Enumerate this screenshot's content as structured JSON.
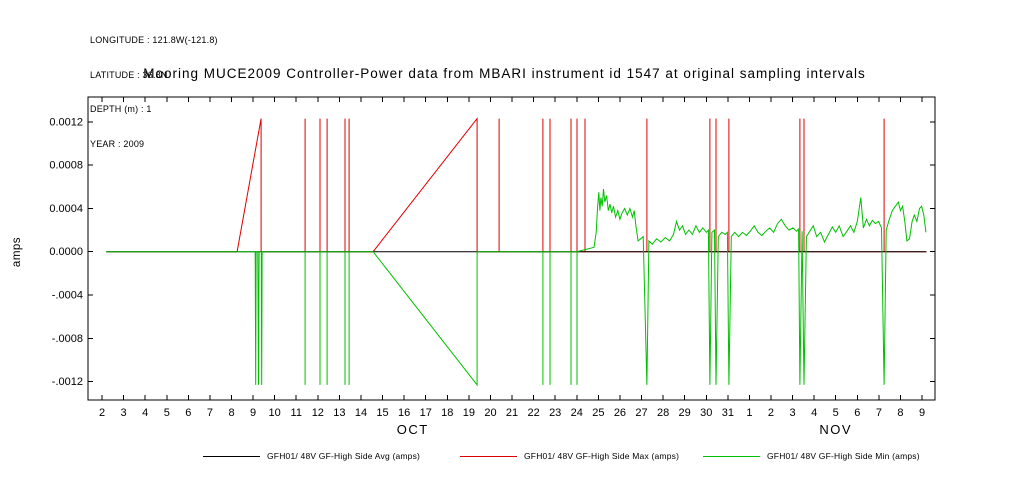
{
  "meta": {
    "lines": [
      "LONGITUDE : 121.8W(-121.8)",
      "LATITUDE : 36.8N",
      "DEPTH (m) : 1",
      "YEAR : 2009"
    ]
  },
  "title": "Mooring MUCE2009 Controller-Power data from MBARI instrument id 1547 at original sampling intervals",
  "chart_data": {
    "type": "line",
    "title": "Mooring MUCE2009 Controller-Power data from MBARI instrument id 1547 at original sampling intervals",
    "ylabel": "amps",
    "xlim": [
      1.35,
      40.6
    ],
    "ylim": [
      -0.00137,
      0.00143
    ],
    "x_tick_start": 2,
    "x_tick_labels": [
      "2",
      "3",
      "4",
      "5",
      "6",
      "7",
      "8",
      "9",
      "10",
      "11",
      "12",
      "13",
      "14",
      "15",
      "16",
      "17",
      "18",
      "19",
      "20",
      "21",
      "22",
      "23",
      "24",
      "25",
      "26",
      "27",
      "28",
      "29",
      "30",
      "31",
      "1",
      "2",
      "3",
      "4",
      "5",
      "6",
      "7",
      "8",
      "9"
    ],
    "x_month_labels": [
      {
        "x": 16.4,
        "label": "OCT"
      },
      {
        "x": 36.0,
        "label": "NOV"
      }
    ],
    "y_ticks": [
      {
        "v": 0.0012,
        "label": "0.0012"
      },
      {
        "v": 0.0008,
        "label": "0.0008"
      },
      {
        "v": 0.0004,
        "label": "0.0004"
      },
      {
        "v": 0.0,
        "label": "0.0000"
      },
      {
        "v": -0.0004,
        "label": "-.0004"
      },
      {
        "v": -0.0008,
        "label": "-.0008"
      },
      {
        "v": -0.0012,
        "label": "-.0012"
      }
    ],
    "draw_order": [
      1,
      0,
      2
    ],
    "series": [
      {
        "id": "avg",
        "name": "GFH01/ 48V GF-High Side Avg (amps)",
        "color": "#000000",
        "points": [
          [
            2.2,
            0
          ],
          [
            40.2,
            0
          ]
        ]
      },
      {
        "id": "max",
        "name": "GFH01/ 48V GF-High Side Max (amps)",
        "color": "#dd0000",
        "points": [
          [
            2.2,
            0
          ],
          [
            8.26,
            0
          ],
          [
            9.37,
            0.00123
          ],
          [
            9.37,
            0
          ],
          [
            11.41,
            0
          ],
          [
            11.41,
            0.00123
          ],
          [
            11.41,
            0
          ],
          [
            12.1,
            0
          ],
          [
            12.1,
            0.00123
          ],
          [
            12.1,
            0
          ],
          [
            12.43,
            0
          ],
          [
            12.43,
            0.00123
          ],
          [
            12.43,
            0
          ],
          [
            13.26,
            0
          ],
          [
            13.26,
            0.00123
          ],
          [
            13.26,
            0
          ],
          [
            13.45,
            0
          ],
          [
            13.45,
            0.00123
          ],
          [
            13.45,
            0
          ],
          [
            14.56,
            0
          ],
          [
            19.38,
            0.00123
          ],
          [
            19.38,
            0
          ],
          [
            20.4,
            0
          ],
          [
            20.4,
            0.00123
          ],
          [
            20.4,
            0
          ],
          [
            22.43,
            0
          ],
          [
            22.43,
            0.00123
          ],
          [
            22.43,
            0
          ],
          [
            22.76,
            0
          ],
          [
            22.76,
            0.00123
          ],
          [
            22.76,
            0
          ],
          [
            23.73,
            0
          ],
          [
            23.73,
            0.00123
          ],
          [
            23.73,
            0
          ],
          [
            24.01,
            0
          ],
          [
            24.01,
            0.00123
          ],
          [
            24.01,
            0
          ],
          [
            24.38,
            0
          ],
          [
            24.38,
            0.00123
          ],
          [
            24.38,
            0
          ],
          [
            27.25,
            0
          ],
          [
            27.25,
            0.00123
          ],
          [
            27.25,
            0
          ],
          [
            30.17,
            0
          ],
          [
            30.17,
            0.00123
          ],
          [
            30.17,
            0
          ],
          [
            30.45,
            0
          ],
          [
            30.45,
            0.00123
          ],
          [
            30.45,
            0
          ],
          [
            31.05,
            0
          ],
          [
            31.05,
            0.00123
          ],
          [
            31.05,
            0
          ],
          [
            34.34,
            0
          ],
          [
            34.34,
            0.00123
          ],
          [
            34.34,
            0
          ],
          [
            34.53,
            0
          ],
          [
            34.53,
            0.00123
          ],
          [
            34.53,
            0
          ],
          [
            38.24,
            0
          ],
          [
            38.24,
            0.00123
          ],
          [
            38.24,
            0
          ],
          [
            40.2,
            0
          ]
        ]
      },
      {
        "id": "min",
        "name": "GFH01/ 48V GF-High Side Min (amps)",
        "color": "#00c000",
        "points": [
          [
            2.2,
            0
          ],
          [
            9.1,
            0
          ],
          [
            9.12,
            -0.00123
          ],
          [
            9.14,
            0
          ],
          [
            9.22,
            0
          ],
          [
            9.25,
            -0.00123
          ],
          [
            9.28,
            0
          ],
          [
            9.38,
            0
          ],
          [
            9.4,
            -0.00123
          ],
          [
            9.42,
            0
          ],
          [
            11.41,
            0
          ],
          [
            11.41,
            -0.00123
          ],
          [
            11.41,
            0
          ],
          [
            12.1,
            0
          ],
          [
            12.1,
            -0.00123
          ],
          [
            12.1,
            0
          ],
          [
            12.43,
            0
          ],
          [
            12.43,
            -0.00123
          ],
          [
            12.43,
            0
          ],
          [
            13.26,
            0
          ],
          [
            13.26,
            -0.00123
          ],
          [
            13.26,
            0
          ],
          [
            13.45,
            0
          ],
          [
            13.45,
            -0.00123
          ],
          [
            13.45,
            0
          ],
          [
            14.56,
            0
          ],
          [
            19.38,
            -0.00123
          ],
          [
            19.38,
            0
          ],
          [
            22.43,
            0
          ],
          [
            22.43,
            -0.00123
          ],
          [
            22.43,
            0
          ],
          [
            22.76,
            0
          ],
          [
            22.76,
            -0.00123
          ],
          [
            22.76,
            0
          ],
          [
            23.73,
            0
          ],
          [
            23.73,
            -0.00123
          ],
          [
            23.73,
            0
          ],
          [
            24.01,
            0
          ],
          [
            24.01,
            -0.00123
          ],
          [
            24.01,
            0
          ],
          [
            24.8,
            4e-05
          ],
          [
            24.9,
            0.00018
          ],
          [
            24.96,
            0.0004
          ],
          [
            25.02,
            0.00055
          ],
          [
            25.07,
            0.00038
          ],
          [
            25.12,
            0.0005
          ],
          [
            25.18,
            0.00042
          ],
          [
            25.24,
            0.00058
          ],
          [
            25.3,
            0.00046
          ],
          [
            25.38,
            0.00052
          ],
          [
            25.46,
            0.00038
          ],
          [
            25.54,
            0.00044
          ],
          [
            25.62,
            0.00036
          ],
          [
            25.7,
            0.00042
          ],
          [
            25.8,
            0.00032
          ],
          [
            25.9,
            0.00038
          ],
          [
            26.0,
            0.0003
          ],
          [
            26.1,
            0.00036
          ],
          [
            26.22,
            0.0004
          ],
          [
            26.34,
            0.00034
          ],
          [
            26.46,
            0.0004
          ],
          [
            26.58,
            0.00032
          ],
          [
            26.66,
            0.00038
          ],
          [
            26.74,
            0.00024
          ],
          [
            26.84,
            0.0001
          ],
          [
            26.96,
            0.00012
          ],
          [
            27.08,
            0.00014
          ],
          [
            27.25,
            -0.00123
          ],
          [
            27.34,
            0.0001
          ],
          [
            27.5,
            7e-05
          ],
          [
            27.7,
            0.00012
          ],
          [
            27.9,
            9e-05
          ],
          [
            28.1,
            0.00013
          ],
          [
            28.3,
            0.0001
          ],
          [
            28.48,
            0.00016
          ],
          [
            28.62,
            0.00028
          ],
          [
            28.76,
            0.0002
          ],
          [
            28.9,
            0.00024
          ],
          [
            29.04,
            0.00016
          ],
          [
            29.2,
            0.0002
          ],
          [
            29.36,
            0.00016
          ],
          [
            29.52,
            0.00024
          ],
          [
            29.68,
            0.00018
          ],
          [
            29.84,
            0.00022
          ],
          [
            30.0,
            0.00018
          ],
          [
            30.1,
            0.0002
          ],
          [
            30.17,
            -0.00123
          ],
          [
            30.26,
            0.00018
          ],
          [
            30.38,
            0.0002
          ],
          [
            30.45,
            -0.00123
          ],
          [
            30.56,
            0.00014
          ],
          [
            30.72,
            0.00018
          ],
          [
            30.88,
            0.00016
          ],
          [
            30.98,
            0.00018
          ],
          [
            31.05,
            -0.00123
          ],
          [
            31.16,
            0.00014
          ],
          [
            31.32,
            0.00018
          ],
          [
            31.5,
            0.00014
          ],
          [
            31.68,
            0.00018
          ],
          [
            31.86,
            0.00015
          ],
          [
            32.04,
            0.00019
          ],
          [
            32.22,
            0.00024
          ],
          [
            32.4,
            0.00018
          ],
          [
            32.58,
            0.00015
          ],
          [
            32.76,
            0.00019
          ],
          [
            32.94,
            0.00022
          ],
          [
            33.12,
            0.00018
          ],
          [
            33.3,
            0.00026
          ],
          [
            33.48,
            0.0003
          ],
          [
            33.66,
            0.00024
          ],
          [
            33.84,
            0.0002
          ],
          [
            34.02,
            0.00022
          ],
          [
            34.18,
            0.00019
          ],
          [
            34.28,
            0.00021
          ],
          [
            34.34,
            -0.00123
          ],
          [
            34.44,
            0.00019
          ],
          [
            34.53,
            -0.00123
          ],
          [
            34.64,
            0.00014
          ],
          [
            34.8,
            0.00019
          ],
          [
            34.96,
            0.00024
          ],
          [
            35.12,
            0.00014
          ],
          [
            35.3,
            0.00018
          ],
          [
            35.48,
            9e-05
          ],
          [
            35.66,
            0.00016
          ],
          [
            35.84,
            0.00023
          ],
          [
            36.0,
            0.00018
          ],
          [
            36.16,
            0.00024
          ],
          [
            36.34,
            0.00014
          ],
          [
            36.52,
            0.00019
          ],
          [
            36.68,
            0.00024
          ],
          [
            36.84,
            0.00018
          ],
          [
            37.0,
            0.00028
          ],
          [
            37.16,
            0.0005
          ],
          [
            37.28,
            0.00022
          ],
          [
            37.42,
            0.0003
          ],
          [
            37.56,
            0.00024
          ],
          [
            37.7,
            0.00029
          ],
          [
            37.84,
            0.00026
          ],
          [
            37.98,
            0.00028
          ],
          [
            38.12,
            0.00022
          ],
          [
            38.24,
            -0.00123
          ],
          [
            38.34,
            0.0002
          ],
          [
            38.48,
            0.0003
          ],
          [
            38.62,
            0.00038
          ],
          [
            38.76,
            0.00042
          ],
          [
            38.9,
            0.00046
          ],
          [
            39.0,
            0.00038
          ],
          [
            39.1,
            0.00042
          ],
          [
            39.2,
            0.00028
          ],
          [
            39.3,
            0.0001
          ],
          [
            39.42,
            0.00012
          ],
          [
            39.54,
            0.00028
          ],
          [
            39.64,
            0.00034
          ],
          [
            39.76,
            0.00028
          ],
          [
            39.88,
            0.0004
          ],
          [
            39.98,
            0.00042
          ],
          [
            40.08,
            0.00034
          ],
          [
            40.18,
            0.00018
          ]
        ]
      }
    ]
  },
  "legend": {
    "items": [
      {
        "label": "GFH01/ 48V GF-High Side Avg (amps)",
        "color": "#000000"
      },
      {
        "label": "GFH01/ 48V GF-High Side Max (amps)",
        "color": "#dd0000"
      },
      {
        "label": "GFH01/ 48V GF-High Side Min (amps)",
        "color": "#00c000"
      }
    ]
  }
}
